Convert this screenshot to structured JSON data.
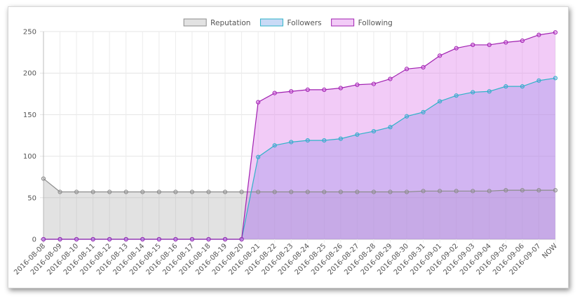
{
  "chart_data": {
    "type": "area",
    "title": "",
    "xlabel": "",
    "ylabel": "",
    "ylim": [
      0,
      250
    ],
    "yticks": [
      0,
      50,
      100,
      150,
      200,
      250
    ],
    "grid": true,
    "legend_position": "top-center",
    "categories": [
      "2016-08-08",
      "2016-08-09",
      "2016-08-10",
      "2016-08-11",
      "2016-08-12",
      "2016-08-13",
      "2016-08-14",
      "2016-08-15",
      "2016-08-16",
      "2016-08-17",
      "2016-08-18",
      "2016-08-19",
      "2016-08-20",
      "2016-08-21",
      "2016-08-22",
      "2016-08-23",
      "2016-08-24",
      "2016-08-25",
      "2016-08-26",
      "2016-08-27",
      "2016-08-28",
      "2016-08-29",
      "2016-08-30",
      "2016-08-31",
      "2016-09-01",
      "2016-09-02",
      "2016-09-03",
      "2016-09-04",
      "2016-09-05",
      "2016-09-06",
      "2016-09-07",
      "NOW"
    ],
    "series": [
      {
        "name": "Reputation",
        "color": "#8c8c8c",
        "fill": "rgba(150,150,150,0.28)",
        "values": [
          73,
          57,
          57,
          57,
          57,
          57,
          57,
          57,
          57,
          57,
          57,
          57,
          57,
          57,
          57,
          57,
          57,
          57,
          57,
          57,
          57,
          57,
          57,
          58,
          58,
          58,
          58,
          58,
          59,
          59,
          59,
          59
        ]
      },
      {
        "name": "Followers",
        "color": "#2fb3c8",
        "fill": "rgba(100,150,230,0.35)",
        "values": [
          0,
          0,
          0,
          0,
          0,
          0,
          0,
          0,
          0,
          0,
          0,
          0,
          0,
          99,
          113,
          117,
          119,
          119,
          121,
          126,
          130,
          135,
          148,
          153,
          166,
          173,
          177,
          178,
          184,
          184,
          191,
          194
        ]
      },
      {
        "name": "Following",
        "color": "#a020b0",
        "fill": "rgba(225,130,235,0.42)",
        "values": [
          0,
          0,
          0,
          0,
          0,
          0,
          0,
          0,
          0,
          0,
          0,
          0,
          0,
          165,
          176,
          178,
          180,
          180,
          182,
          186,
          187,
          193,
          205,
          207,
          221,
          230,
          234,
          234,
          237,
          239,
          246,
          249
        ]
      }
    ]
  }
}
